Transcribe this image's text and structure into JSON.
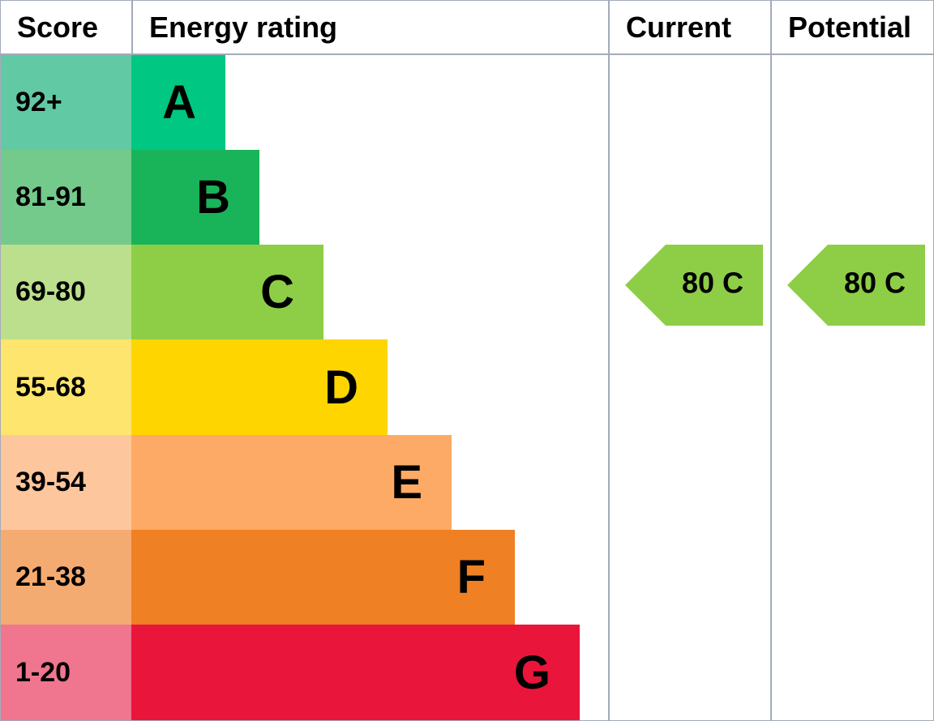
{
  "header": {
    "score": "Score",
    "rating": "Energy rating",
    "current": "Current",
    "potential": "Potential"
  },
  "rows": [
    {
      "score": "92+",
      "letter": "A",
      "score_color": "#62c9a5",
      "color": "#00c781"
    },
    {
      "score": "81-91",
      "letter": "B",
      "score_color": "#74ca8b",
      "color": "#19b459"
    },
    {
      "score": "69-80",
      "letter": "C",
      "score_color": "#bbdf8c",
      "color": "#8dce46"
    },
    {
      "score": "55-68",
      "letter": "D",
      "score_color": "#fee56e",
      "color": "#ffd500"
    },
    {
      "score": "39-54",
      "letter": "E",
      "score_color": "#fec69c",
      "color": "#fcaa65"
    },
    {
      "score": "21-38",
      "letter": "F",
      "score_color": "#f4ab72",
      "color": "#ef8023"
    },
    {
      "score": "1-20",
      "letter": "G",
      "score_color": "#f0758e",
      "color": "#e9153b"
    }
  ],
  "current": {
    "label": "80 C",
    "color": "#8dce46"
  },
  "potential": {
    "label": "80 C",
    "color": "#8dce46"
  }
}
